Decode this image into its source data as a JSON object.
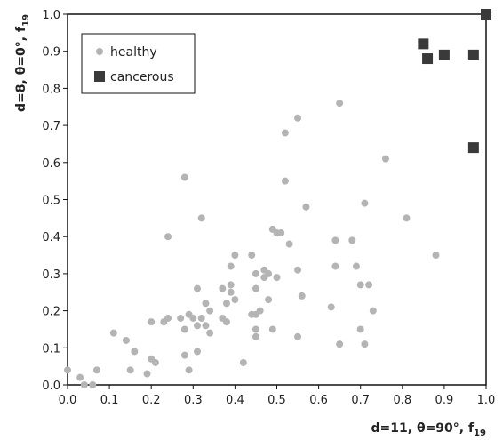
{
  "chart_data": {
    "type": "scatter",
    "title": "",
    "xlabel": "d=11, θ=90°, f19",
    "ylabel": "d=8, θ=0°, f19",
    "xlabel_main": "d=11, θ=90°, f",
    "xlabel_sub": "19",
    "ylabel_main": "d=8, θ=0°, f",
    "ylabel_sub": "19",
    "xlim": [
      0.0,
      1.0
    ],
    "ylim": [
      0.0,
      1.0
    ],
    "xticks": [
      "0.0",
      "0.1",
      "0.2",
      "0.3",
      "0.4",
      "0.5",
      "0.6",
      "0.7",
      "0.8",
      "0.9",
      "1.0"
    ],
    "yticks": [
      "0.0",
      "0.1",
      "0.2",
      "0.3",
      "0.4",
      "0.5",
      "0.6",
      "0.7",
      "0.8",
      "0.9",
      "1.0"
    ],
    "grid": false,
    "legend_position": "top-left",
    "series": [
      {
        "name": "healthy",
        "marker": "circle",
        "color": "#b4b4b4",
        "points": [
          [
            0.0,
            0.04
          ],
          [
            0.03,
            0.02
          ],
          [
            0.04,
            0.0
          ],
          [
            0.06,
            0.0
          ],
          [
            0.07,
            0.04
          ],
          [
            0.11,
            0.14
          ],
          [
            0.14,
            0.12
          ],
          [
            0.15,
            0.04
          ],
          [
            0.16,
            0.09
          ],
          [
            0.19,
            0.03
          ],
          [
            0.2,
            0.17
          ],
          [
            0.2,
            0.07
          ],
          [
            0.21,
            0.06
          ],
          [
            0.23,
            0.17
          ],
          [
            0.24,
            0.4
          ],
          [
            0.24,
            0.18
          ],
          [
            0.27,
            0.18
          ],
          [
            0.28,
            0.56
          ],
          [
            0.28,
            0.15
          ],
          [
            0.28,
            0.08
          ],
          [
            0.29,
            0.19
          ],
          [
            0.29,
            0.04
          ],
          [
            0.3,
            0.18
          ],
          [
            0.31,
            0.26
          ],
          [
            0.31,
            0.16
          ],
          [
            0.31,
            0.09
          ],
          [
            0.32,
            0.45
          ],
          [
            0.32,
            0.18
          ],
          [
            0.33,
            0.22
          ],
          [
            0.33,
            0.16
          ],
          [
            0.34,
            0.2
          ],
          [
            0.34,
            0.14
          ],
          [
            0.37,
            0.26
          ],
          [
            0.37,
            0.18
          ],
          [
            0.38,
            0.17
          ],
          [
            0.38,
            0.22
          ],
          [
            0.39,
            0.32
          ],
          [
            0.39,
            0.27
          ],
          [
            0.39,
            0.25
          ],
          [
            0.4,
            0.23
          ],
          [
            0.4,
            0.35
          ],
          [
            0.42,
            0.06
          ],
          [
            0.44,
            0.19
          ],
          [
            0.44,
            0.35
          ],
          [
            0.45,
            0.3
          ],
          [
            0.45,
            0.26
          ],
          [
            0.45,
            0.19
          ],
          [
            0.45,
            0.15
          ],
          [
            0.45,
            0.13
          ],
          [
            0.46,
            0.2
          ],
          [
            0.47,
            0.29
          ],
          [
            0.47,
            0.31
          ],
          [
            0.48,
            0.23
          ],
          [
            0.48,
            0.3
          ],
          [
            0.49,
            0.15
          ],
          [
            0.49,
            0.42
          ],
          [
            0.5,
            0.41
          ],
          [
            0.5,
            0.29
          ],
          [
            0.51,
            0.41
          ],
          [
            0.52,
            0.68
          ],
          [
            0.52,
            0.55
          ],
          [
            0.53,
            0.38
          ],
          [
            0.55,
            0.72
          ],
          [
            0.55,
            0.31
          ],
          [
            0.55,
            0.13
          ],
          [
            0.56,
            0.24
          ],
          [
            0.57,
            0.48
          ],
          [
            0.63,
            0.21
          ],
          [
            0.64,
            0.32
          ],
          [
            0.64,
            0.39
          ],
          [
            0.65,
            0.76
          ],
          [
            0.65,
            0.11
          ],
          [
            0.68,
            0.39
          ],
          [
            0.69,
            0.32
          ],
          [
            0.7,
            0.27
          ],
          [
            0.7,
            0.15
          ],
          [
            0.71,
            0.49
          ],
          [
            0.71,
            0.11
          ],
          [
            0.72,
            0.27
          ],
          [
            0.73,
            0.2
          ],
          [
            0.76,
            0.61
          ],
          [
            0.81,
            0.45
          ],
          [
            0.88,
            0.35
          ]
        ]
      },
      {
        "name": "cancerous",
        "marker": "square",
        "color": "#3a3a3a",
        "points": [
          [
            0.85,
            0.92
          ],
          [
            0.86,
            0.88
          ],
          [
            0.9,
            0.89
          ],
          [
            0.97,
            0.89
          ],
          [
            0.97,
            0.64
          ],
          [
            1.0,
            1.0
          ]
        ]
      }
    ]
  }
}
